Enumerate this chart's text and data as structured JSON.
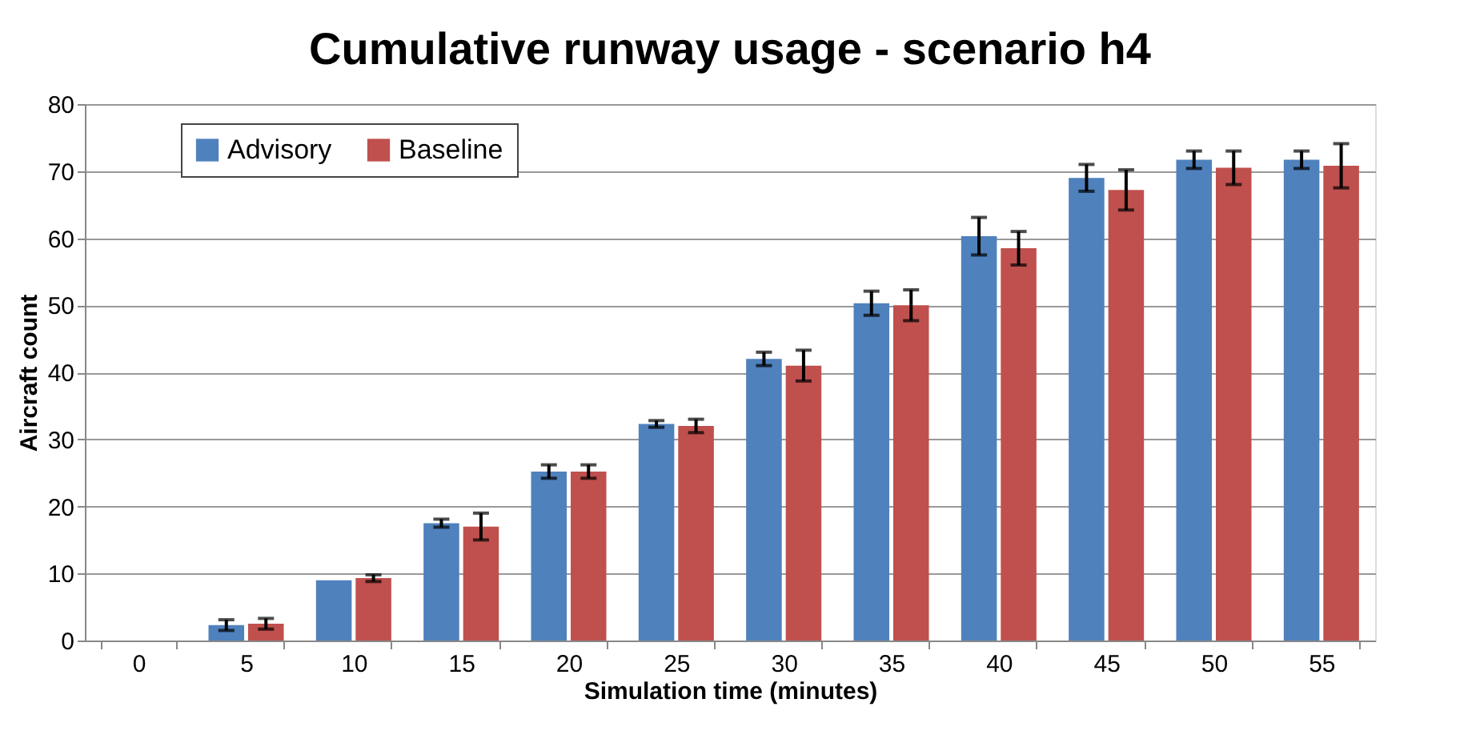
{
  "chart_data": {
    "type": "bar",
    "title": "Cumulative runway usage - scenario h4",
    "xlabel": "Simulation time (minutes)",
    "ylabel": "Aircraft count",
    "categories": [
      "0",
      "5",
      "10",
      "15",
      "20",
      "25",
      "30",
      "35",
      "40",
      "45",
      "50",
      "55"
    ],
    "series": [
      {
        "name": "Advisory",
        "color": "#4f81bd",
        "values": [
          0,
          2.3,
          9,
          17.5,
          25.2,
          32.3,
          42,
          50.3,
          60.3,
          69,
          71.7,
          71.7
        ],
        "errors": [
          null,
          0.8,
          null,
          0.6,
          1,
          0.5,
          1,
          1.8,
          2.8,
          2,
          1.3,
          1.3
        ]
      },
      {
        "name": "Baseline",
        "color": "#c0504d",
        "values": [
          0,
          2.5,
          9.3,
          17,
          25.2,
          32,
          41,
          50,
          58.5,
          67.2,
          70.5,
          70.8
        ],
        "errors": [
          null,
          0.8,
          0.5,
          2,
          1,
          1,
          2.3,
          2.3,
          2.5,
          3,
          2.5,
          3.3
        ]
      }
    ],
    "ylim": [
      0,
      80
    ],
    "yticks": [
      0,
      10,
      20,
      30,
      40,
      50,
      60,
      70,
      80
    ],
    "grid": "y",
    "legend": "top left"
  }
}
